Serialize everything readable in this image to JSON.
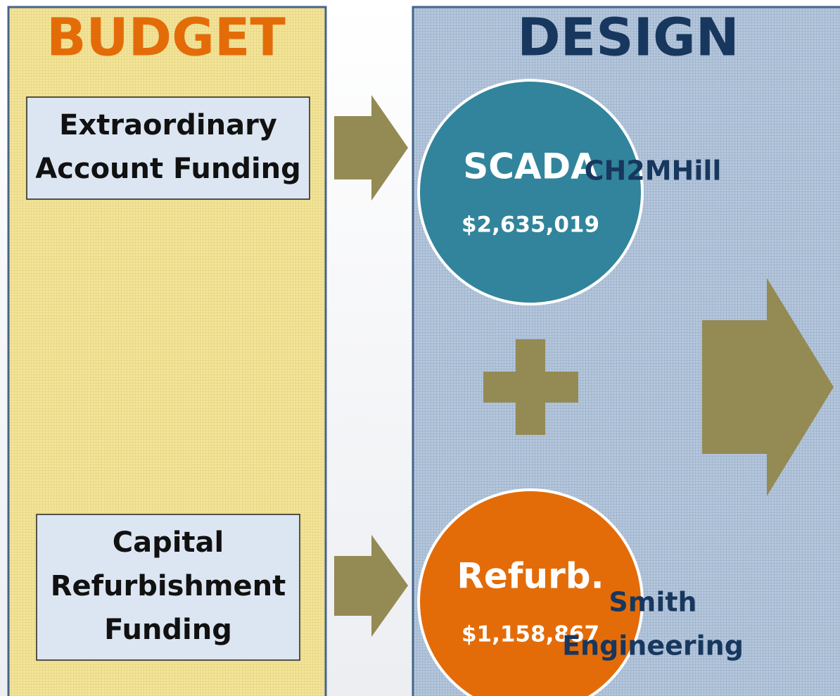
{
  "budget": {
    "title": "BUDGET",
    "sources": [
      {
        "lines": [
          "Extraordinary",
          "Account Funding"
        ]
      },
      {
        "lines": [
          "Capital",
          "Refurbishment",
          "Funding"
        ]
      }
    ]
  },
  "design": {
    "title": "DESIGN",
    "projects": [
      {
        "name": "SCADA",
        "amount": "$2,635,019",
        "firm": [
          "CH2MHill"
        ]
      },
      {
        "name": "Refurb.",
        "amount": "$1,158,867",
        "firm": [
          "Smith",
          "Engineering"
        ]
      }
    ]
  }
}
